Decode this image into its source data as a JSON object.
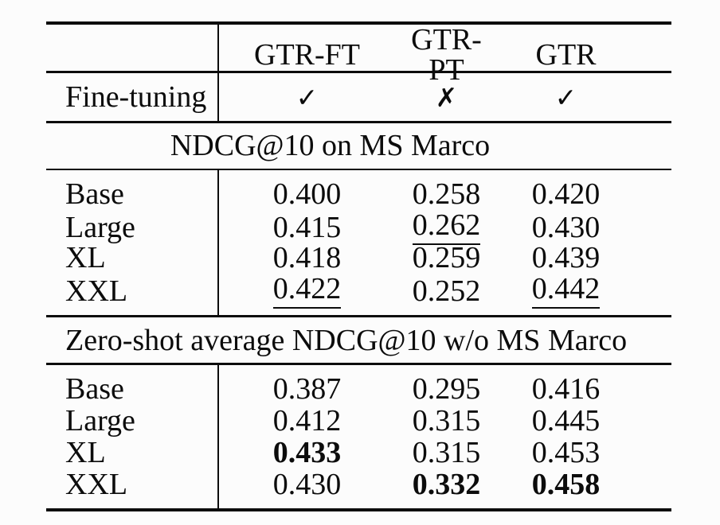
{
  "colors": {
    "text": "#0c0c0c",
    "background": "#fcfcfc",
    "rule": "#0c0c0c"
  },
  "table": {
    "columns": {
      "c2": "GTR-FT",
      "c3": "GTR-PT",
      "c4": "GTR"
    },
    "fine_tuning": {
      "label": "Fine-tuning",
      "values": [
        {
          "glyph": "✓",
          "name": "check"
        },
        {
          "glyph": "✗",
          "name": "cross"
        },
        {
          "glyph": "✓",
          "name": "check"
        }
      ]
    },
    "sections": [
      {
        "header": "NDCG@10 on MS Marco",
        "rows": [
          {
            "label": "Base",
            "values": [
              {
                "text": "0.400"
              },
              {
                "text": "0.258"
              },
              {
                "text": "0.420"
              }
            ]
          },
          {
            "label": "Large",
            "values": [
              {
                "text": "0.415"
              },
              {
                "text": "0.262",
                "underline": true
              },
              {
                "text": "0.430"
              }
            ]
          },
          {
            "label": "XL",
            "values": [
              {
                "text": "0.418"
              },
              {
                "text": "0.259"
              },
              {
                "text": "0.439"
              }
            ]
          },
          {
            "label": "XXL",
            "values": [
              {
                "text": "0.422",
                "underline": true
              },
              {
                "text": "0.252"
              },
              {
                "text": "0.442",
                "underline": true
              }
            ]
          }
        ]
      },
      {
        "header": "Zero-shot average NDCG@10 w/o MS Marco",
        "rows": [
          {
            "label": "Base",
            "values": [
              {
                "text": "0.387"
              },
              {
                "text": "0.295"
              },
              {
                "text": "0.416"
              }
            ]
          },
          {
            "label": "Large",
            "values": [
              {
                "text": "0.412"
              },
              {
                "text": "0.315"
              },
              {
                "text": "0.445"
              }
            ]
          },
          {
            "label": "XL",
            "values": [
              {
                "text": "0.433",
                "bold": true
              },
              {
                "text": "0.315"
              },
              {
                "text": "0.453"
              }
            ]
          },
          {
            "label": "XXL",
            "values": [
              {
                "text": "0.430"
              },
              {
                "text": "0.332",
                "bold": true
              },
              {
                "text": "0.458",
                "bold": true
              }
            ]
          }
        ]
      }
    ]
  }
}
